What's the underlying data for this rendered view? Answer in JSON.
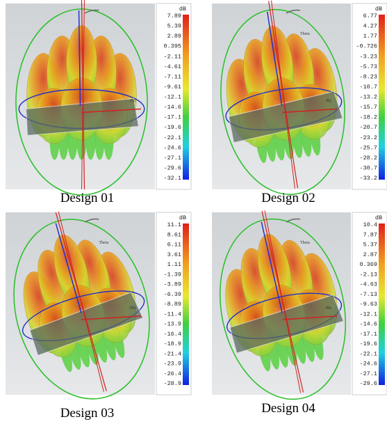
{
  "panels": [
    {
      "caption": "Design 01",
      "unit": "dB",
      "phi": "Phi",
      "ticks": [
        "7.89",
        "5.39",
        "2.89",
        "0.395",
        "-2.11",
        "-4.61",
        "-7.11",
        "-9.61",
        "-12.1",
        "-14.6",
        "-17.1",
        "-19.6",
        "-22.1",
        "-24.6",
        "-27.1",
        "-29.6",
        "-32.1"
      ]
    },
    {
      "caption": "Design 02",
      "unit": "dB",
      "theta": "Theta",
      "phi": "Phi",
      "ticks": [
        "6.77",
        "4.27",
        "1.77",
        "-0.726",
        "-3.23",
        "-5.73",
        "-8.23",
        "-10.7",
        "-13.2",
        "-15.7",
        "-18.2",
        "-20.7",
        "-23.2",
        "-25.7",
        "-28.2",
        "-30.7",
        "-33.2"
      ]
    },
    {
      "caption": "Design 03",
      "unit": "dB",
      "theta": "Theta",
      "phi": "Phi",
      "ticks": [
        "11.1",
        "8.61",
        "6.11",
        "3.61",
        "1.11",
        "-1.39",
        "-3.89",
        "-6.39",
        "-8.89",
        "-11.4",
        "-13.9",
        "-16.4",
        "-18.9",
        "-21.4",
        "-23.9",
        "-26.4",
        "-28.9"
      ]
    },
    {
      "caption": "Design 04",
      "unit": "dB",
      "theta": "Theta",
      "phi": "Phi",
      "ticks": [
        "10.4",
        "7.87",
        "5.37",
        "2.87",
        "0.369",
        "-2.13",
        "-4.63",
        "-7.13",
        "-9.63",
        "-12.1",
        "-14.6",
        "-17.1",
        "-19.6",
        "-22.1",
        "-24.6",
        "-27.1",
        "-29.6"
      ]
    }
  ]
}
